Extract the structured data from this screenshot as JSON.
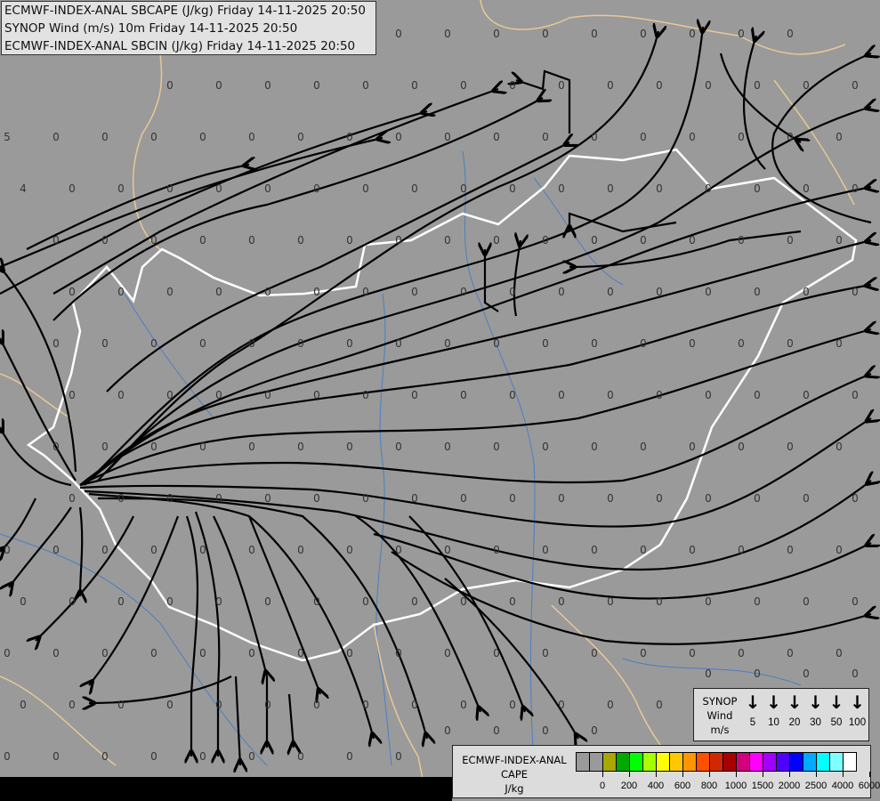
{
  "title_lines": [
    "ECMWF-INDEX-ANAL SBCAPE (J/kg) Friday 14-11-2025 20:50",
    "SYNOP Wind (m/s) 10m Friday 14-11-2025 20:50",
    "ECMWF-INDEX-ANAL SBCIN (J/kg) Friday 14-11-2025 20:50"
  ],
  "synop_legend": {
    "label_lines": [
      "SYNOP",
      "Wind",
      "m/s"
    ],
    "speeds": [
      "5",
      "10",
      "20",
      "30",
      "50",
      "100"
    ],
    "icon": "wind-arrow-down-icon"
  },
  "cape_legend": {
    "label_lines": [
      "ECMWF-INDEX-ANAL",
      "CAPE",
      "J/kg"
    ],
    "colors": [
      "#9a9a9a",
      "#9a9a9a",
      "#a8a800",
      "#00a800",
      "#00ff00",
      "#a8ff00",
      "#ffff00",
      "#ffc800",
      "#ff9600",
      "#ff5000",
      "#d22800",
      "#a80000",
      "#d2007a",
      "#ff00ff",
      "#a000ff",
      "#5000ff",
      "#0000ff",
      "#00aaff",
      "#00ffff",
      "#80ffff",
      "#ffffff"
    ],
    "tick_labels": [
      "0",
      "200",
      "400",
      "600",
      "800",
      "1000",
      "1500",
      "2000",
      "2500",
      "4000",
      "6000"
    ]
  },
  "cin_values": [
    [
      "",
      "",
      "",
      "",
      "",
      "",
      "",
      "",
      "0",
      "0",
      "0",
      "0",
      "0",
      "0",
      "0",
      "0",
      "0",
      ""
    ],
    [
      "",
      "",
      "",
      "0",
      "0",
      "0",
      "0",
      "0",
      "0",
      "0",
      "0",
      "0",
      "0",
      "0",
      "0",
      "0",
      "0",
      "0"
    ],
    [
      "5",
      "0",
      "0",
      "0",
      "0",
      "0",
      "0",
      "0",
      "0",
      "0",
      "0",
      "0",
      "0",
      "0",
      "0",
      "0",
      "0",
      "0"
    ],
    [
      "4",
      "0",
      "0",
      "0",
      "0",
      "0",
      "0",
      "0",
      "0",
      "0",
      "0",
      "0",
      "0",
      "0",
      "0",
      "0",
      "0",
      "0"
    ],
    [
      "",
      "0",
      "0",
      "0",
      "0",
      "0",
      "0",
      "0",
      "0",
      "0",
      "0",
      "0",
      "0",
      "0",
      "0",
      "0",
      "0",
      "0"
    ],
    [
      "",
      "0",
      "0",
      "0",
      "0",
      "0",
      "0",
      "0",
      "0",
      "0",
      "0",
      "0",
      "0",
      "0",
      "0",
      "0",
      "0",
      "0"
    ],
    [
      "",
      "0",
      "0",
      "0",
      "0",
      "0",
      "0",
      "0",
      "0",
      "0",
      "0",
      "0",
      "0",
      "0",
      "0",
      "0",
      "0",
      "0"
    ],
    [
      "",
      "0",
      "0",
      "0",
      "0",
      "0",
      "0",
      "0",
      "0",
      "0",
      "0",
      "0",
      "0",
      "0",
      "0",
      "0",
      "0",
      "0"
    ],
    [
      "",
      "0",
      "0",
      "0",
      "0",
      "0",
      "0",
      "0",
      "0",
      "0",
      "0",
      "0",
      "0",
      "0",
      "0",
      "0",
      "0",
      "0"
    ],
    [
      "",
      "0",
      "0",
      "0",
      "0",
      "0",
      "0",
      "0",
      "0",
      "0",
      "0",
      "0",
      "0",
      "0",
      "0",
      "0",
      "0",
      "0"
    ],
    [
      "0",
      "0",
      "0",
      "0",
      "0",
      "0",
      "0",
      "0",
      "0",
      "0",
      "0",
      "0",
      "0",
      "0",
      "0",
      "0",
      "0",
      "0"
    ],
    [
      "0",
      "0",
      "0",
      "0",
      "0",
      "0",
      "0",
      "0",
      "0",
      "0",
      "0",
      "0",
      "0",
      "0",
      "0",
      "0",
      "0",
      "0"
    ],
    [
      "0",
      "0",
      "0",
      "0",
      "0",
      "0",
      "0",
      "0",
      "0",
      "0",
      "0",
      "0",
      "0",
      "0",
      "0",
      "0",
      "0",
      "0"
    ],
    [
      "0",
      "0",
      "0",
      "0",
      "0",
      "0",
      "0",
      "0",
      "0",
      "0",
      "0",
      "0",
      "0",
      "0",
      "0",
      "0",
      "0",
      "0"
    ],
    [
      "0",
      "0",
      "0",
      "0",
      "0",
      "0",
      "0",
      "0",
      "0",
      "0",
      "0",
      "0",
      "0",
      "",
      "",
      "",
      "",
      ""
    ]
  ]
}
